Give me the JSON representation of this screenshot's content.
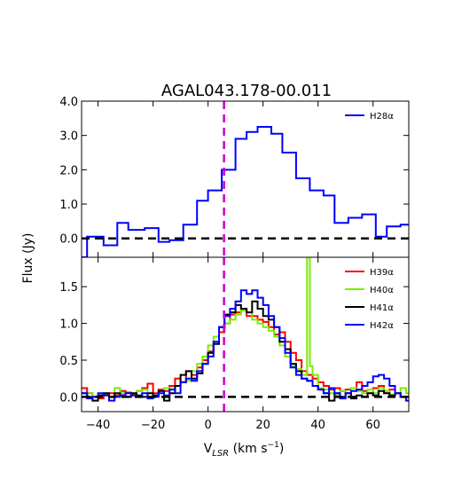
{
  "chart_data": [
    {
      "type": "line",
      "title": "AGAL043.178-00.011",
      "ylabel": "Flux (Jy)",
      "ylim": [
        -0.55,
        4.0
      ],
      "xlim": [
        -46,
        73
      ],
      "y_ticks": [
        {
          "v": 4.0,
          "label": "4.0"
        },
        {
          "v": 3.0,
          "label": "3.0"
        },
        {
          "v": 2.0,
          "label": "2.0"
        },
        {
          "v": 1.0,
          "label": "1.0"
        },
        {
          "v": 0.0,
          "label": "0.0"
        }
      ],
      "vline": {
        "x": 5.8,
        "color": "#cc00cc"
      },
      "hline": {
        "y": 0.0,
        "color": "#000000"
      },
      "legend_position": "top-right",
      "series": [
        {
          "name": "H28α",
          "color": "#0000ff",
          "step": true,
          "x": [
            -49,
            -44,
            -38,
            -33,
            -29,
            -23,
            -18,
            -14,
            -9,
            -4,
            0,
            5,
            10,
            14,
            18,
            23,
            27,
            32,
            37,
            42,
            46,
            51,
            56,
            61,
            65,
            70
          ],
          "y": [
            -0.55,
            0.05,
            -0.2,
            0.45,
            0.25,
            0.3,
            -0.1,
            -0.05,
            0.4,
            1.1,
            1.4,
            2.0,
            2.9,
            3.1,
            3.25,
            3.05,
            2.5,
            1.75,
            1.4,
            1.25,
            0.45,
            0.6,
            0.7,
            0.05,
            0.35,
            0.4
          ]
        }
      ]
    },
    {
      "type": "line",
      "xlabel": "V",
      "xlabel_sub": "LSR",
      "xlabel_unit_open": "(km s",
      "xlabel_sup": "−1",
      "xlabel_unit_close": ")",
      "ylim": [
        -0.2,
        1.9
      ],
      "xlim": [
        -46,
        73
      ],
      "y_ticks": [
        {
          "v": 1.5,
          "label": "1.5"
        },
        {
          "v": 1.0,
          "label": "1.0"
        },
        {
          "v": 0.5,
          "label": "0.5"
        },
        {
          "v": 0.0,
          "label": "0.0"
        }
      ],
      "x_ticks": [
        {
          "v": -40,
          "label": "−40"
        },
        {
          "v": -20,
          "label": "−20"
        },
        {
          "v": 0,
          "label": "0"
        },
        {
          "v": 20,
          "label": "20"
        },
        {
          "v": 40,
          "label": "40"
        },
        {
          "v": 60,
          "label": "60"
        }
      ],
      "vline": {
        "x": 5.8,
        "color": "#cc00cc"
      },
      "hline": {
        "y": 0.0,
        "color": "#000000"
      },
      "legend_position": "top-right",
      "series": [
        {
          "name": "H39α",
          "color": "#ff0000",
          "step": true,
          "x": [
            -46,
            -44,
            -42,
            -40,
            -38,
            -36,
            -34,
            -32,
            -30,
            -28,
            -26,
            -24,
            -22,
            -20,
            -18,
            -16,
            -14,
            -12,
            -10,
            -8,
            -6,
            -4,
            -2,
            0,
            2,
            4,
            6,
            8,
            10,
            12,
            14,
            16,
            18,
            20,
            22,
            24,
            26,
            28,
            30,
            32,
            34,
            36,
            38,
            40,
            42,
            44,
            46,
            48,
            50,
            52,
            54,
            56,
            58,
            60,
            62,
            64,
            66,
            68,
            70,
            72
          ],
          "y": [
            0.12,
            0.05,
            0.0,
            -0.02,
            0.03,
            0.05,
            0.02,
            0.08,
            0.06,
            0.03,
            0.08,
            0.12,
            0.18,
            0.05,
            0.1,
            0.08,
            0.15,
            0.25,
            0.2,
            0.35,
            0.3,
            0.4,
            0.5,
            0.62,
            0.75,
            0.88,
            1.0,
            1.12,
            1.15,
            1.18,
            1.1,
            1.1,
            1.05,
            1.02,
            0.95,
            0.85,
            0.88,
            0.75,
            0.6,
            0.5,
            0.35,
            0.3,
            0.25,
            0.2,
            0.15,
            0.1,
            0.12,
            0.08,
            0.1,
            0.12,
            0.2,
            0.08,
            0.05,
            0.12,
            0.15,
            0.05,
            0.1,
            0.05,
            0.0,
            0.0
          ]
        },
        {
          "name": "H40α",
          "color": "#77ee00",
          "step": true,
          "x": [
            -46,
            -44,
            -42,
            -40,
            -38,
            -36,
            -34,
            -32,
            -30,
            -28,
            -26,
            -24,
            -22,
            -20,
            -18,
            -16,
            -14,
            -12,
            -10,
            -8,
            -6,
            -4,
            -2,
            0,
            2,
            4,
            6,
            8,
            10,
            12,
            14,
            16,
            18,
            20,
            22,
            24,
            26,
            28,
            30,
            32,
            34,
            36,
            37,
            38,
            40,
            42,
            44,
            46,
            48,
            50,
            52,
            54,
            56,
            58,
            60,
            62,
            64,
            66,
            68,
            70,
            72
          ],
          "y": [
            0.0,
            0.05,
            -0.05,
            0.02,
            0.05,
            0.0,
            0.12,
            0.05,
            0.0,
            0.05,
            0.08,
            0.1,
            0.05,
            0.0,
            0.08,
            0.12,
            0.05,
            0.15,
            0.2,
            0.22,
            0.35,
            0.45,
            0.55,
            0.7,
            0.82,
            0.95,
            1.0,
            1.05,
            1.12,
            1.18,
            1.15,
            1.05,
            1.0,
            0.95,
            0.9,
            0.82,
            0.7,
            0.55,
            0.42,
            0.38,
            0.3,
            1.95,
            0.42,
            0.3,
            0.12,
            0.1,
            0.05,
            0.02,
            0.08,
            0.05,
            0.12,
            0.08,
            0.05,
            0.1,
            0.05,
            0.12,
            0.08,
            0.03,
            0.05,
            0.12,
            0.05
          ]
        },
        {
          "name": "H41α",
          "color": "#000000",
          "step": true,
          "x": [
            -46,
            -44,
            -42,
            -40,
            -38,
            -36,
            -34,
            -32,
            -30,
            -28,
            -26,
            -24,
            -22,
            -20,
            -18,
            -16,
            -14,
            -12,
            -10,
            -8,
            -6,
            -4,
            -2,
            0,
            2,
            4,
            6,
            8,
            10,
            12,
            14,
            16,
            18,
            20,
            22,
            24,
            26,
            28,
            30,
            32,
            34,
            36,
            38,
            40,
            42,
            44,
            46,
            48,
            50,
            52,
            54,
            56,
            58,
            60,
            62,
            64,
            66,
            68,
            70,
            72
          ],
          "y": [
            0.05,
            0.0,
            -0.05,
            0.02,
            0.05,
            0.0,
            0.05,
            0.02,
            0.0,
            0.05,
            0.02,
            0.0,
            0.05,
            0.02,
            0.08,
            -0.05,
            0.05,
            0.15,
            0.3,
            0.35,
            0.25,
            0.32,
            0.45,
            0.6,
            0.72,
            0.95,
            1.12,
            1.15,
            1.25,
            1.2,
            1.15,
            1.3,
            1.2,
            1.1,
            1.05,
            0.95,
            0.75,
            0.65,
            0.45,
            0.35,
            0.25,
            0.22,
            0.15,
            0.1,
            0.05,
            -0.05,
            0.05,
            0.0,
            0.05,
            -0.02,
            0.02,
            0.0,
            0.05,
            0.02,
            0.08,
            0.05,
            0.02,
            0.05,
            0.0,
            0.0
          ]
        },
        {
          "name": "H42α",
          "color": "#0000ff",
          "step": true,
          "x": [
            -46,
            -44,
            -42,
            -40,
            -38,
            -36,
            -34,
            -32,
            -30,
            -28,
            -26,
            -24,
            -22,
            -20,
            -18,
            -16,
            -14,
            -12,
            -10,
            -8,
            -6,
            -4,
            -2,
            0,
            2,
            4,
            6,
            8,
            10,
            12,
            14,
            16,
            18,
            20,
            22,
            24,
            26,
            28,
            30,
            32,
            34,
            36,
            38,
            40,
            42,
            44,
            46,
            48,
            50,
            52,
            54,
            56,
            58,
            60,
            62,
            64,
            66,
            68,
            70,
            72
          ],
          "y": [
            0.05,
            -0.02,
            0.0,
            0.05,
            0.02,
            -0.05,
            0.0,
            0.02,
            0.05,
            0.02,
            0.0,
            0.05,
            -0.02,
            0.0,
            0.05,
            0.02,
            0.1,
            0.05,
            0.2,
            0.25,
            0.22,
            0.35,
            0.45,
            0.55,
            0.75,
            0.95,
            1.1,
            1.2,
            1.3,
            1.45,
            1.4,
            1.45,
            1.35,
            1.25,
            1.1,
            0.95,
            0.8,
            0.6,
            0.4,
            0.3,
            0.25,
            0.22,
            0.15,
            0.1,
            0.05,
            0.12,
            0.05,
            -0.02,
            0.05,
            0.08,
            0.1,
            0.15,
            0.2,
            0.28,
            0.3,
            0.25,
            0.15,
            0.05,
            0.0,
            -0.05
          ]
        }
      ]
    }
  ]
}
